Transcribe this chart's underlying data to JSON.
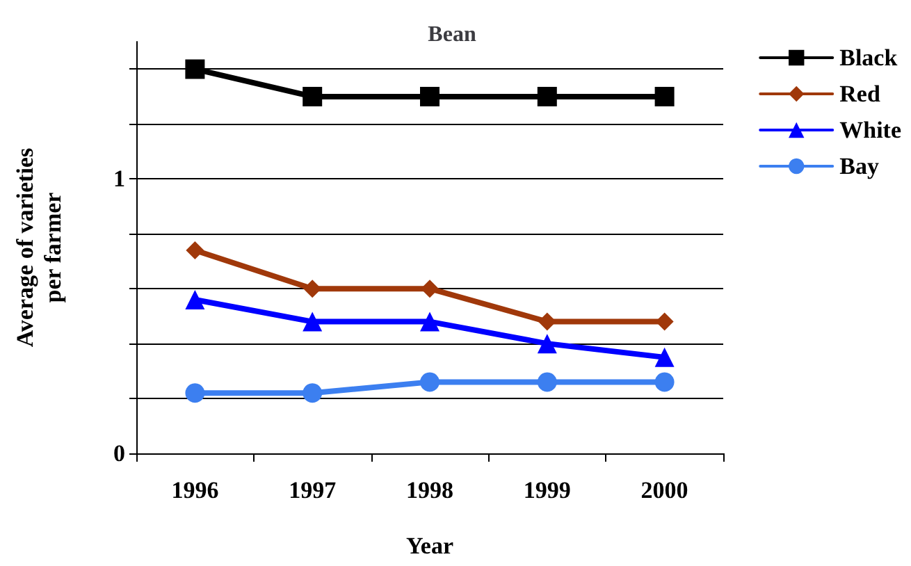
{
  "chart_data": {
    "type": "line",
    "title": "Bean",
    "xlabel": "Year",
    "ylabel": "Average of varieties\nper farmer",
    "categories": [
      "1996",
      "1997",
      "1998",
      "1999",
      "2000"
    ],
    "series": [
      {
        "name": "Black",
        "color": "#000000",
        "marker": "square",
        "values": [
          1.4,
          1.3,
          1.3,
          1.3,
          1.3
        ]
      },
      {
        "name": "Red",
        "color": "#a0380a",
        "marker": "diamond",
        "values": [
          0.74,
          0.6,
          0.6,
          0.48,
          0.48
        ]
      },
      {
        "name": "White",
        "color": "#0000ff",
        "marker": "triangle",
        "values": [
          0.56,
          0.48,
          0.48,
          0.4,
          0.35
        ]
      },
      {
        "name": "Bay",
        "color": "#3c7ff0",
        "marker": "circle",
        "values": [
          0.22,
          0.22,
          0.26,
          0.26,
          0.26
        ]
      }
    ],
    "ylim": [
      0,
      1.5
    ],
    "yticks": [
      0,
      {
        "value": 0.2,
        "label": null
      },
      {
        "value": 0.4,
        "label": null
      },
      {
        "value": 0.6,
        "label": null
      },
      {
        "value": 0.8,
        "label": null
      },
      1,
      {
        "value": 1.2,
        "label": null
      },
      {
        "value": 1.4,
        "label": null
      }
    ],
    "grid": "y",
    "legend": "top right",
    "line_style": "solid"
  }
}
